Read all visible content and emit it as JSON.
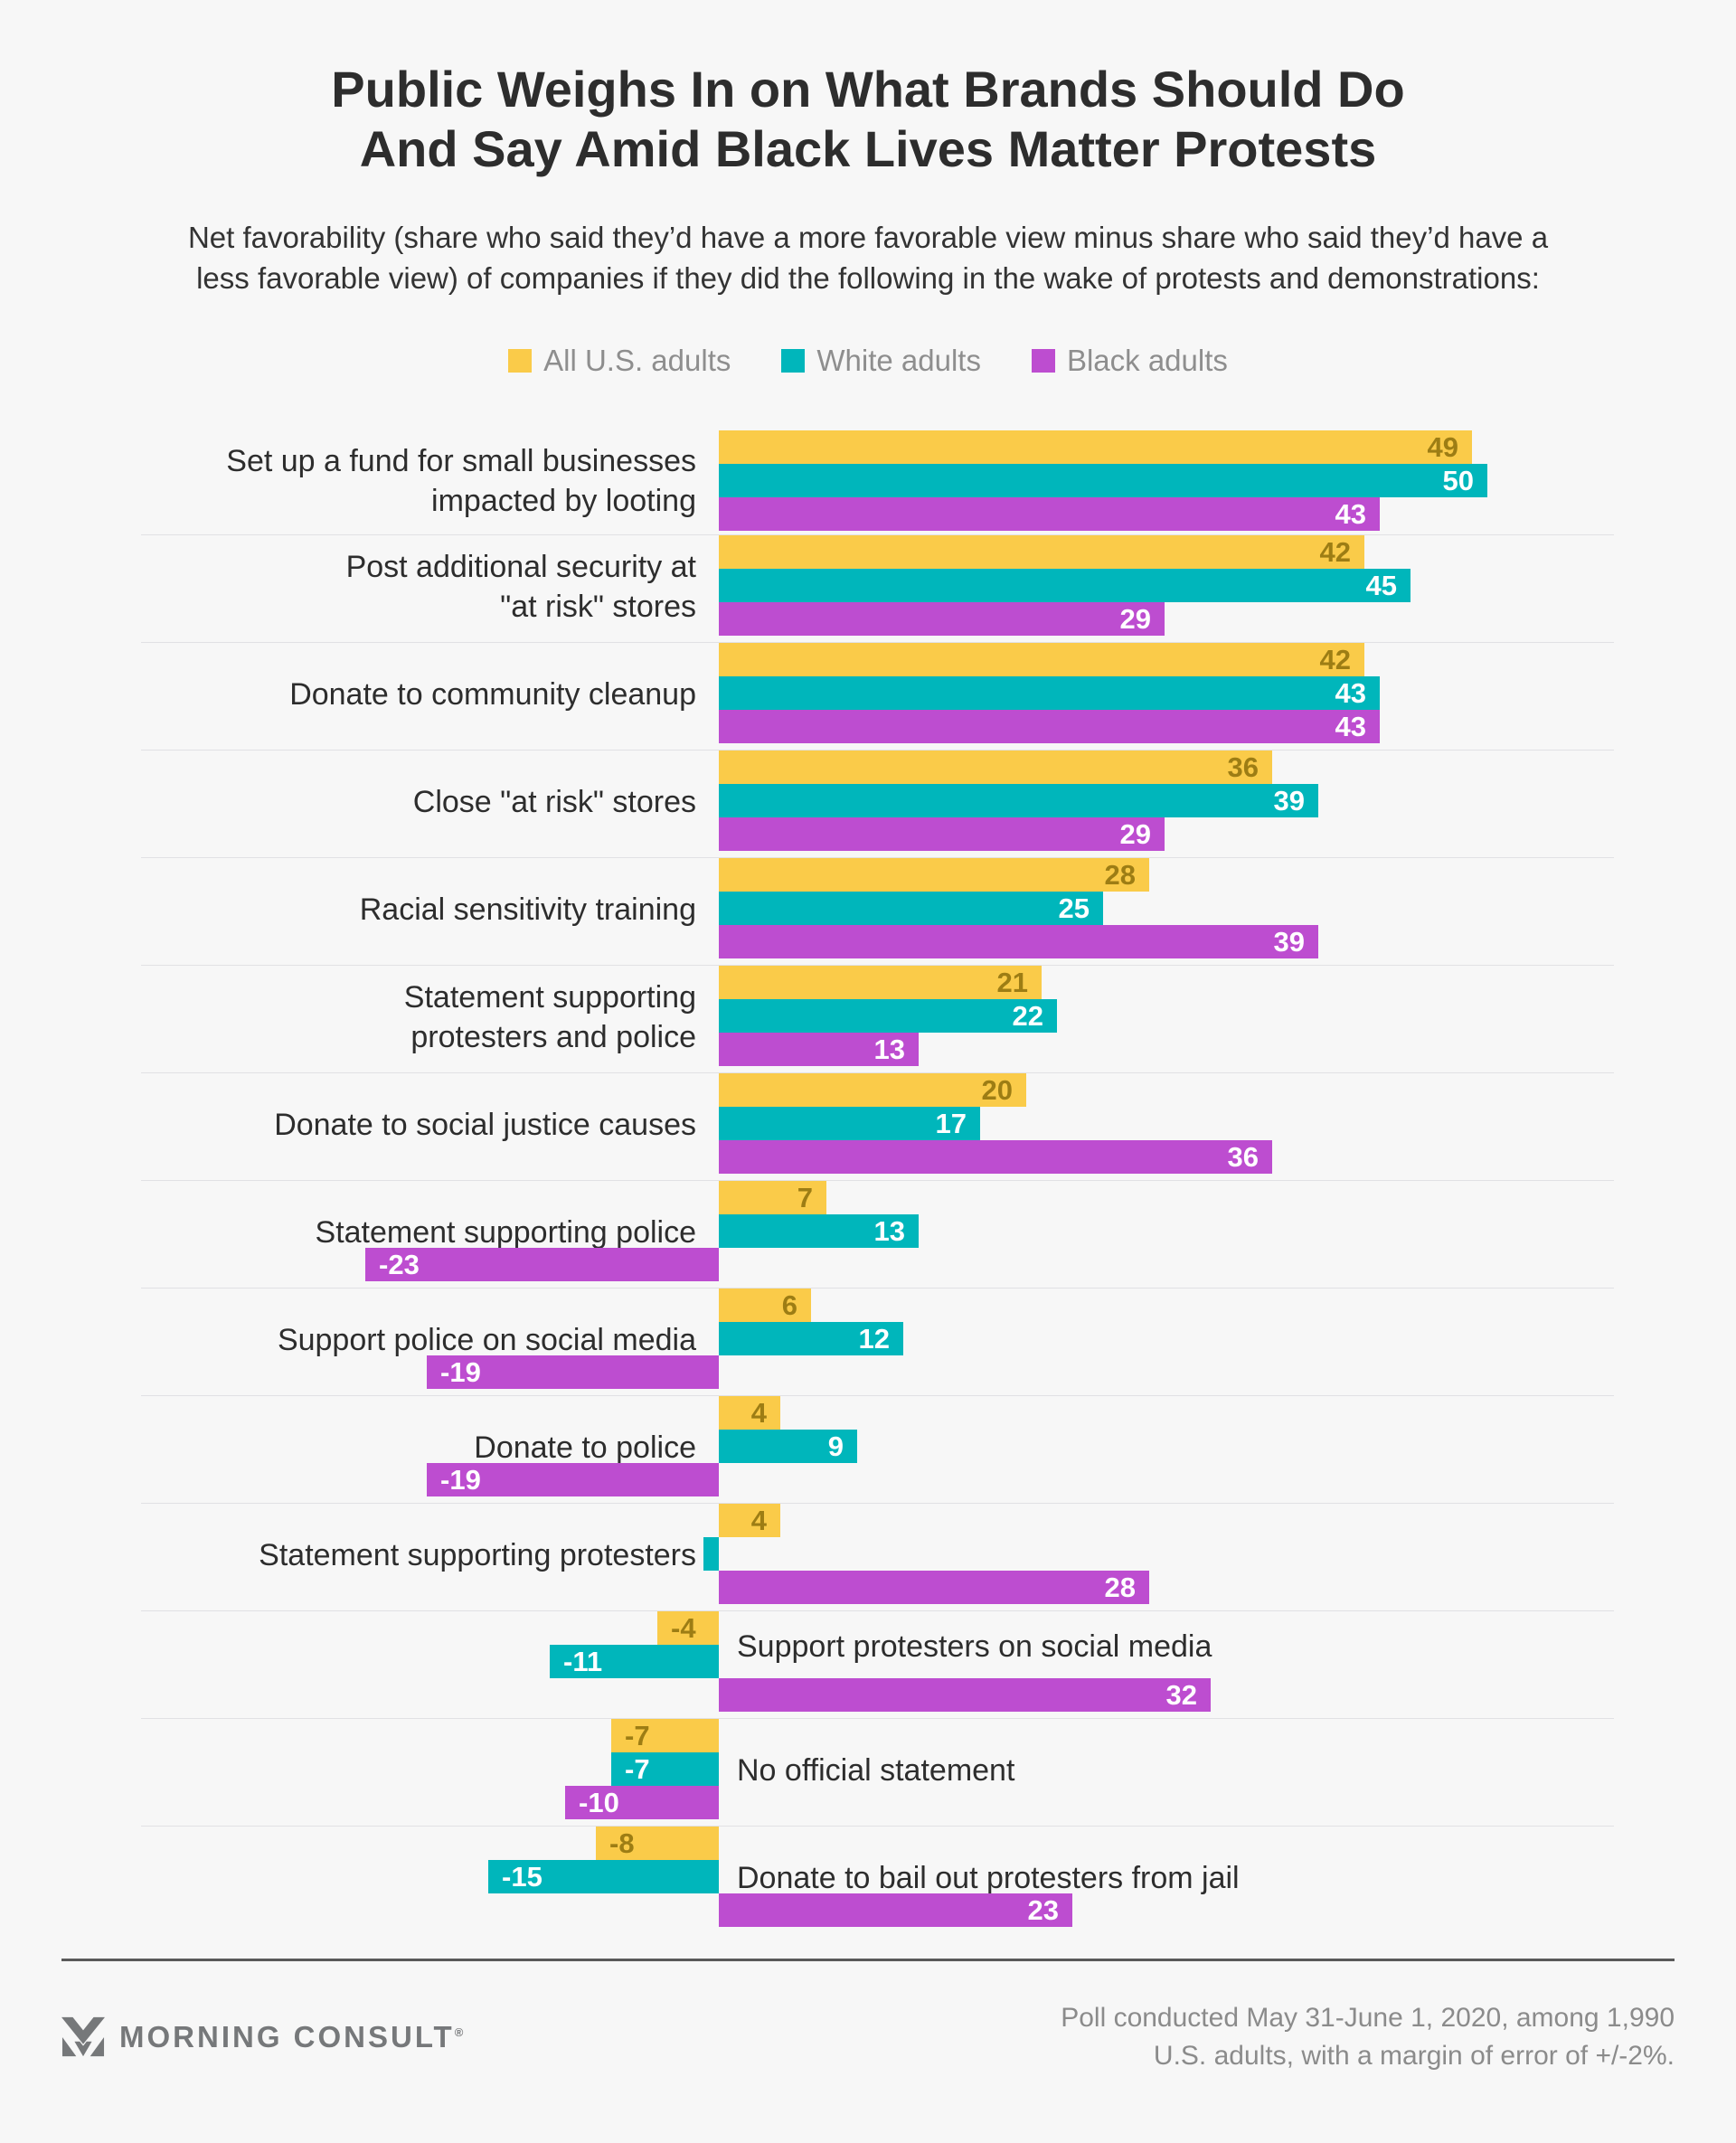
{
  "title": {
    "line1": "Public Weighs In on What Brands Should Do",
    "line2": "And Say Amid Black Lives Matter Protests"
  },
  "subtitle": {
    "line1": "Net favorability (share who said they’d have a more favorable view minus share who said they’d have a",
    "line2": "less favorable view) of companies if they did the following in the wake of protests and demonstrations:"
  },
  "legend": [
    {
      "label": "All U.S. adults",
      "color": "#FACB49"
    },
    {
      "label": "White adults",
      "color": "#00B6BB"
    },
    {
      "label": "Black adults",
      "color": "#BD4DD0"
    }
  ],
  "chart_data": {
    "type": "bar",
    "orientation": "horizontal",
    "legend_position": "top center",
    "grid": "light separator line between category groups, no axes or ticks shown",
    "xlim": [
      -25,
      55
    ],
    "series": [
      "All U.S. adults",
      "White adults",
      "Black adults"
    ],
    "colors": [
      "#FACB49",
      "#00B6BB",
      "#BD4DD0"
    ],
    "value_label_color_on_yellow": "#9D7D14",
    "value_label_color_on_dark": "#FFFFFF",
    "rows": [
      {
        "label_lines": [
          "Set up a fund for small businesses",
          "impacted by looting"
        ],
        "side": "left",
        "values": [
          49,
          50,
          43
        ]
      },
      {
        "label_lines": [
          "Post additional security at",
          "\"at risk\" stores"
        ],
        "side": "left",
        "values": [
          42,
          45,
          29
        ]
      },
      {
        "label_lines": [
          "Donate to community cleanup"
        ],
        "side": "left",
        "values": [
          42,
          43,
          43
        ]
      },
      {
        "label_lines": [
          "Close \"at risk\" stores"
        ],
        "side": "left",
        "values": [
          36,
          39,
          29
        ]
      },
      {
        "label_lines": [
          "Racial sensitivity training"
        ],
        "side": "left",
        "values": [
          28,
          25,
          39
        ]
      },
      {
        "label_lines": [
          "Statement supporting",
          "protesters and police"
        ],
        "side": "left",
        "values": [
          21,
          22,
          13
        ]
      },
      {
        "label_lines": [
          "Donate to social justice causes"
        ],
        "side": "left",
        "values": [
          20,
          17,
          36
        ]
      },
      {
        "label_lines": [
          "Statement supporting police"
        ],
        "side": "left",
        "values": [
          7,
          13,
          -23
        ]
      },
      {
        "label_lines": [
          "Support police on social media"
        ],
        "side": "left",
        "values": [
          6,
          12,
          -19
        ]
      },
      {
        "label_lines": [
          "Donate to police"
        ],
        "side": "left",
        "values": [
          4,
          9,
          -19
        ]
      },
      {
        "label_lines": [
          "Statement supporting protesters"
        ],
        "side": "left",
        "values": [
          4,
          -1,
          28
        ],
        "hide_value_labels": [
          1
        ]
      },
      {
        "label_lines": [
          "Support protesters on social media"
        ],
        "side": "right",
        "values": [
          -4,
          -11,
          32
        ]
      },
      {
        "label_lines": [
          "No official statement"
        ],
        "side": "right",
        "values": [
          -7,
          -7,
          -10
        ]
      },
      {
        "label_lines": [
          "Donate to bail out protesters from jail"
        ],
        "side": "right",
        "values": [
          -8,
          -15,
          23
        ]
      }
    ]
  },
  "footer": {
    "logo_text": "MORNING CONSULT",
    "registered": "®",
    "note_line1": "Poll conducted May 31-June 1, 2020, among 1,990",
    "note_line2": "U.S. adults, with a margin of error of +/-2%."
  }
}
